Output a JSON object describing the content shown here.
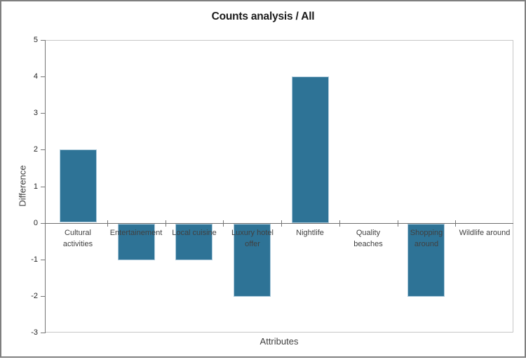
{
  "window": {
    "background": "#ffffff",
    "frame_border_color": "#7f7f7f"
  },
  "chart_data": {
    "type": "bar",
    "title": "Counts analysis / All",
    "xlabel": "Attributes",
    "ylabel": "Difference",
    "categories": [
      "Cultural activities",
      "Entertainement",
      "Local cuisine",
      "Luxury hotel offer",
      "Nightlife",
      "Quality beaches",
      "Shopping around",
      "Wildlife around"
    ],
    "category_label_lines": [
      [
        "Cultural",
        "activities"
      ],
      [
        "Entertainement"
      ],
      [
        "Local cuisine"
      ],
      [
        "Luxury hotel",
        "offer"
      ],
      [
        "Nightlife"
      ],
      [
        "Quality",
        "beaches"
      ],
      [
        "Shopping",
        "around"
      ],
      [
        "Wildlife around"
      ]
    ],
    "values": [
      2,
      -1,
      -1,
      -2,
      4,
      0,
      -2,
      0
    ],
    "series": [
      {
        "name": "Difference",
        "values": [
          2,
          -1,
          -1,
          -2,
          4,
          0,
          -2,
          0
        ]
      }
    ],
    "ylim": [
      -3,
      5
    ],
    "yticks": [
      5,
      4,
      3,
      2,
      1,
      0,
      -1,
      -2,
      -3
    ],
    "grid": false,
    "legend": "none",
    "colors": {
      "bar": "#2e7396",
      "bar_border": "#aecbdc",
      "axis_line": "#767676",
      "zero_line": "#6d6d6d",
      "plot_border": "#c6c6c6",
      "title_text": "#1a1a1a",
      "tick_text": "#262626",
      "label_text": "#404040"
    }
  }
}
